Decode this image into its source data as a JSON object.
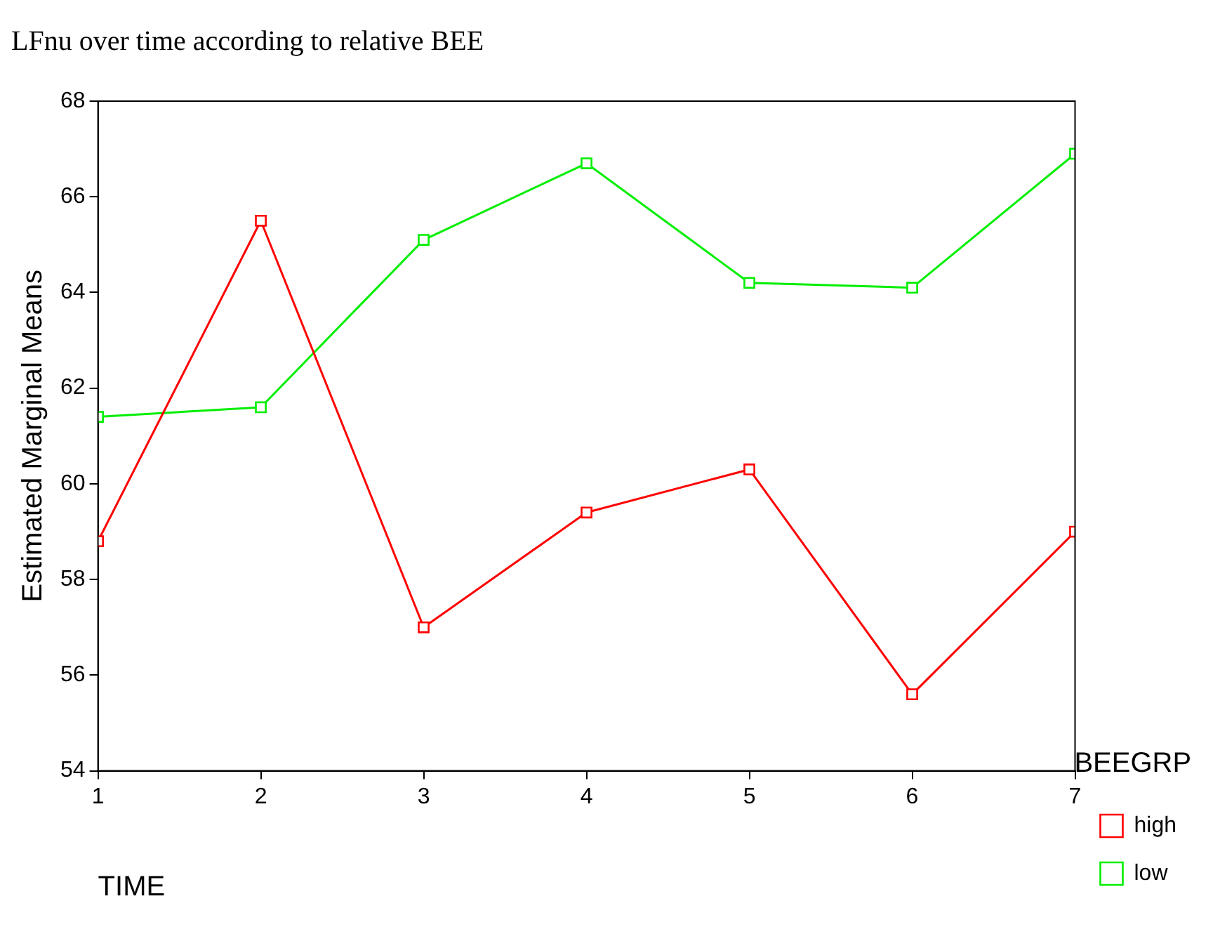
{
  "chart_data": {
    "type": "line",
    "title": "LFnu over time according to relative BEE",
    "xlabel": "TIME",
    "ylabel": "Estimated Marginal Means",
    "legend_title": "BEEGRP",
    "x": [
      1,
      2,
      3,
      4,
      5,
      6,
      7
    ],
    "series": [
      {
        "name": "high",
        "color": "#ff0000",
        "values": [
          58.8,
          65.5,
          57.0,
          59.4,
          60.3,
          55.6,
          59.0
        ]
      },
      {
        "name": "low",
        "color": "#00ee00",
        "values": [
          61.4,
          61.6,
          65.1,
          66.7,
          64.2,
          64.1,
          66.9
        ]
      }
    ],
    "xlim": [
      1,
      7
    ],
    "xticks": [
      1,
      2,
      3,
      4,
      5,
      6,
      7
    ],
    "ylim": [
      54,
      68
    ],
    "yticks": [
      54,
      56,
      58,
      60,
      62,
      64,
      66,
      68
    ],
    "grid": false,
    "legend": "right",
    "marker": "square",
    "line_style": "solid"
  }
}
